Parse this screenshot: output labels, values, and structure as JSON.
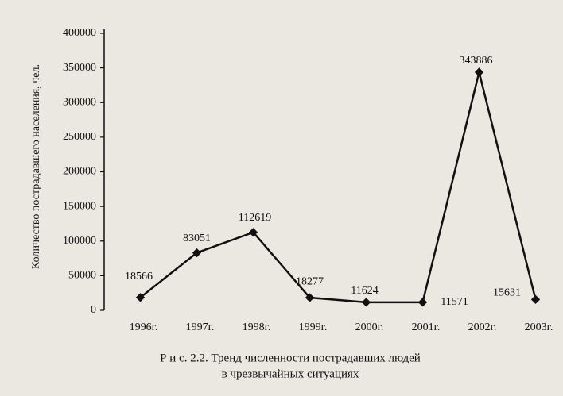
{
  "chart_data": {
    "type": "line",
    "y_label": "Количество пострадавшего населения, чел.",
    "categories": [
      "1996г.",
      "1997г.",
      "1998г.",
      "1999г.",
      "2000г.",
      "2001г.",
      "2002г.",
      "2003г."
    ],
    "series": [
      {
        "color": "#111111",
        "values": [
          18566,
          83051,
          112619,
          18277,
          11624,
          11571,
          343886,
          15631
        ]
      }
    ],
    "ylim": [
      0,
      400000
    ],
    "yticks": [
      0,
      50000,
      100000,
      150000,
      200000,
      250000,
      300000,
      350000,
      400000
    ],
    "data_labels": true,
    "caption": [
      "Р и с. 2.2. Тренд численности пострадавших людей",
      "в чрезвычайных ситуациях"
    ]
  }
}
